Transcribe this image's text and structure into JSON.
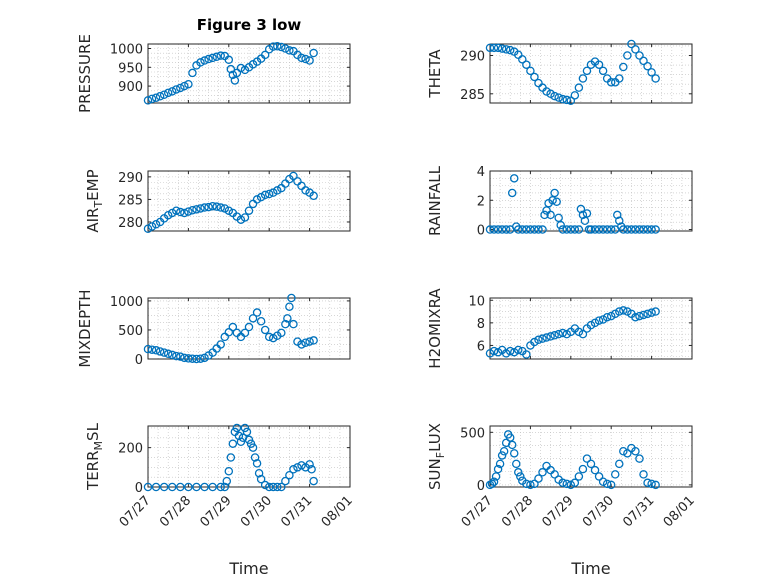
{
  "figure_title": "Figure 3 low",
  "colors": {
    "marker": "#0072BD",
    "axis": "#262626",
    "grid": "#bfbfbf"
  },
  "x_axis": {
    "label": "Time",
    "domain": [
      "07/27",
      "08/01"
    ],
    "ticks": [
      "07/27",
      "07/28",
      "07/29",
      "07/30",
      "07/31",
      "08/01"
    ]
  },
  "chart_data": [
    {
      "type": "scatter",
      "id": "pressure",
      "title": "Figure 3 low",
      "ylabel": "PRESSURE",
      "ylabel_sub": "",
      "ylabel_tail": "",
      "ylim": [
        855,
        1012
      ],
      "yticks": [
        900,
        950,
        1000
      ],
      "xlabel": "",
      "x": [
        0.0,
        0.1,
        0.2,
        0.3,
        0.4,
        0.5,
        0.6,
        0.7,
        0.8,
        0.9,
        1.0,
        1.1,
        1.2,
        1.3,
        1.4,
        1.5,
        1.6,
        1.7,
        1.8,
        1.9,
        2.0,
        2.05,
        2.1,
        2.15,
        2.2,
        2.3,
        2.4,
        2.5,
        2.6,
        2.7,
        2.8,
        2.9,
        3.0,
        3.1,
        3.2,
        3.3,
        3.4,
        3.5,
        3.6,
        3.7,
        3.8,
        3.9,
        4.0,
        4.1
      ],
      "y": [
        862,
        866,
        869,
        873,
        877,
        882,
        886,
        891,
        895,
        900,
        905,
        935,
        955,
        963,
        968,
        972,
        975,
        978,
        981,
        980,
        970,
        945,
        930,
        915,
        935,
        948,
        943,
        950,
        958,
        965,
        973,
        983,
        998,
        1005,
        1006,
        1004,
        1000,
        995,
        993,
        983,
        975,
        972,
        968,
        988
      ]
    },
    {
      "type": "scatter",
      "id": "theta",
      "ylabel": "THETA",
      "ylabel_sub": "",
      "ylabel_tail": "",
      "ylim": [
        283.8,
        291.5
      ],
      "yticks": [
        285,
        290
      ],
      "xlabel": "",
      "x": [
        0.0,
        0.1,
        0.2,
        0.3,
        0.4,
        0.5,
        0.6,
        0.7,
        0.8,
        0.9,
        1.0,
        1.1,
        1.2,
        1.3,
        1.4,
        1.5,
        1.6,
        1.7,
        1.8,
        1.9,
        2.0,
        2.1,
        2.2,
        2.3,
        2.4,
        2.5,
        2.6,
        2.7,
        2.8,
        2.9,
        3.0,
        3.1,
        3.2,
        3.3,
        3.4,
        3.5,
        3.6,
        3.7,
        3.8,
        3.9,
        4.0,
        4.1
      ],
      "y": [
        291,
        291,
        291,
        290.9,
        290.8,
        290.7,
        290.5,
        290.1,
        289.5,
        288.8,
        288,
        287.2,
        286.4,
        285.8,
        285.3,
        285,
        284.7,
        284.5,
        284.3,
        284.2,
        284.1,
        284.8,
        285.8,
        287,
        288,
        288.8,
        289.2,
        288.8,
        288,
        287,
        286.5,
        286.5,
        287,
        288.5,
        290,
        291.5,
        290.8,
        290,
        289.3,
        288.6,
        287.8,
        287
      ]
    },
    {
      "type": "scatter",
      "id": "air_temp",
      "ylabel": "AIR",
      "ylabel_sub": "T",
      "ylabel_tail": "EMP",
      "ylim": [
        278,
        291.3
      ],
      "yticks": [
        280,
        285,
        290
      ],
      "xlabel": "",
      "x": [
        0.0,
        0.1,
        0.2,
        0.3,
        0.4,
        0.5,
        0.6,
        0.7,
        0.8,
        0.9,
        1.0,
        1.1,
        1.2,
        1.3,
        1.4,
        1.5,
        1.6,
        1.7,
        1.8,
        1.9,
        2.0,
        2.1,
        2.2,
        2.3,
        2.4,
        2.5,
        2.6,
        2.7,
        2.8,
        2.9,
        3.0,
        3.1,
        3.2,
        3.3,
        3.4,
        3.5,
        3.6,
        3.7,
        3.8,
        3.9,
        4.0,
        4.1
      ],
      "y": [
        278.5,
        279,
        279.5,
        280,
        280.8,
        281.5,
        282,
        282.5,
        282.2,
        282,
        282.3,
        282.6,
        282.8,
        283,
        283.2,
        283.3,
        283.5,
        283.4,
        283.2,
        283,
        282.5,
        282,
        281.2,
        280.5,
        281,
        282.5,
        284,
        285,
        285.5,
        286,
        286.2,
        286.5,
        287,
        287.5,
        288.5,
        289.5,
        290.2,
        289,
        288,
        287,
        286.5,
        285.8
      ]
    },
    {
      "type": "scatter",
      "id": "rainfall",
      "ylabel": "RAINFALL",
      "ylabel_sub": "",
      "ylabel_tail": "",
      "ylim": [
        -0.1,
        4.0
      ],
      "yticks": [
        0,
        2,
        4
      ],
      "xlabel": "",
      "x": [
        0.0,
        0.1,
        0.2,
        0.3,
        0.4,
        0.5,
        0.55,
        0.6,
        0.65,
        0.7,
        0.8,
        0.9,
        1.0,
        1.1,
        1.2,
        1.3,
        1.35,
        1.4,
        1.45,
        1.5,
        1.55,
        1.6,
        1.65,
        1.7,
        1.75,
        1.8,
        1.9,
        2.0,
        2.1,
        2.2,
        2.25,
        2.3,
        2.35,
        2.4,
        2.45,
        2.5,
        2.6,
        2.7,
        2.8,
        2.9,
        3.0,
        3.1,
        3.15,
        3.2,
        3.25,
        3.3,
        3.4,
        3.5,
        3.6,
        3.7,
        3.8,
        3.9,
        4.0,
        4.1
      ],
      "y": [
        0,
        0,
        0,
        0,
        0,
        0,
        2.5,
        3.5,
        0.2,
        0,
        0,
        0,
        0,
        0,
        0,
        0,
        1.0,
        1.3,
        1.8,
        1.0,
        2.0,
        2.5,
        1.9,
        0.8,
        0.3,
        0,
        0,
        0,
        0,
        0,
        1.4,
        1.0,
        0.6,
        1.1,
        0,
        0,
        0,
        0,
        0,
        0,
        0,
        0,
        1.0,
        0.6,
        0.2,
        0,
        0,
        0,
        0,
        0,
        0,
        0,
        0,
        0
      ]
    },
    {
      "type": "scatter",
      "id": "mixdepth",
      "ylabel": "MIXDEPTH",
      "ylabel_sub": "",
      "ylabel_tail": "",
      "ylim": [
        0,
        1050
      ],
      "yticks": [
        0,
        500,
        1000
      ],
      "xlabel": "",
      "x": [
        0.0,
        0.1,
        0.2,
        0.3,
        0.4,
        0.5,
        0.6,
        0.7,
        0.8,
        0.9,
        1.0,
        1.1,
        1.2,
        1.3,
        1.4,
        1.5,
        1.6,
        1.7,
        1.8,
        1.9,
        2.0,
        2.1,
        2.2,
        2.3,
        2.4,
        2.5,
        2.6,
        2.7,
        2.8,
        2.9,
        3.0,
        3.1,
        3.2,
        3.3,
        3.4,
        3.45,
        3.5,
        3.55,
        3.6,
        3.7,
        3.8,
        3.9,
        4.0,
        4.1
      ],
      "y": [
        170,
        160,
        150,
        130,
        110,
        90,
        70,
        50,
        40,
        20,
        10,
        5,
        0,
        5,
        20,
        60,
        110,
        180,
        250,
        380,
        460,
        550,
        450,
        380,
        450,
        550,
        700,
        800,
        650,
        500,
        380,
        360,
        400,
        450,
        600,
        700,
        900,
        1050,
        600,
        300,
        250,
        280,
        300,
        320
      ]
    },
    {
      "type": "scatter",
      "id": "h2omixra",
      "ylabel": "H2OMIXRA",
      "ylabel_sub": "",
      "ylabel_tail": "",
      "ylim": [
        4.8,
        10.2
      ],
      "yticks": [
        6,
        8,
        10
      ],
      "xlabel": "",
      "x": [
        0.0,
        0.1,
        0.2,
        0.3,
        0.4,
        0.5,
        0.6,
        0.7,
        0.8,
        0.9,
        1.0,
        1.1,
        1.2,
        1.3,
        1.4,
        1.5,
        1.6,
        1.7,
        1.8,
        1.9,
        2.0,
        2.1,
        2.2,
        2.3,
        2.4,
        2.5,
        2.6,
        2.7,
        2.8,
        2.9,
        3.0,
        3.1,
        3.2,
        3.3,
        3.4,
        3.5,
        3.6,
        3.7,
        3.8,
        3.9,
        4.0,
        4.1
      ],
      "y": [
        5.3,
        5.5,
        5.4,
        5.6,
        5.3,
        5.5,
        5.4,
        5.6,
        5.5,
        5.2,
        6.0,
        6.3,
        6.5,
        6.6,
        6.7,
        6.8,
        6.9,
        7.0,
        7.1,
        7.0,
        7.2,
        7.5,
        7.2,
        7.0,
        7.5,
        7.8,
        8.0,
        8.2,
        8.3,
        8.5,
        8.6,
        8.8,
        9.0,
        9.1,
        9.0,
        8.8,
        8.5,
        8.6,
        8.7,
        8.8,
        8.9,
        9.0
      ]
    },
    {
      "type": "scatter",
      "id": "terr_msl",
      "ylabel": "TERR",
      "ylabel_sub": "M",
      "ylabel_tail": "SL",
      "ylim": [
        0,
        310
      ],
      "yticks": [
        0,
        200
      ],
      "xlabel": "Time",
      "x": [
        0.0,
        0.2,
        0.4,
        0.6,
        0.8,
        1.0,
        1.2,
        1.4,
        1.6,
        1.8,
        1.9,
        1.95,
        2.0,
        2.05,
        2.1,
        2.15,
        2.2,
        2.25,
        2.3,
        2.35,
        2.4,
        2.45,
        2.5,
        2.55,
        2.6,
        2.65,
        2.7,
        2.75,
        2.8,
        2.9,
        3.0,
        3.1,
        3.2,
        3.3,
        3.4,
        3.5,
        3.6,
        3.7,
        3.8,
        3.9,
        4.0,
        4.05,
        4.1
      ],
      "y": [
        0,
        0,
        0,
        0,
        0,
        0,
        0,
        0,
        0,
        0,
        0,
        30,
        80,
        150,
        220,
        280,
        300,
        260,
        230,
        250,
        300,
        280,
        240,
        220,
        200,
        150,
        120,
        70,
        40,
        10,
        0,
        0,
        0,
        0,
        30,
        60,
        90,
        100,
        110,
        100,
        115,
        90,
        30
      ]
    },
    {
      "type": "scatter",
      "id": "sun_flux",
      "ylabel": "SUN",
      "ylabel_sub": "F",
      "ylabel_tail": "LUX",
      "ylim": [
        -20,
        560
      ],
      "yticks": [
        0,
        500
      ],
      "xlabel": "Time",
      "x": [
        0.0,
        0.05,
        0.1,
        0.15,
        0.2,
        0.25,
        0.3,
        0.35,
        0.4,
        0.45,
        0.5,
        0.55,
        0.6,
        0.65,
        0.7,
        0.75,
        0.8,
        0.9,
        1.0,
        1.1,
        1.2,
        1.3,
        1.4,
        1.5,
        1.6,
        1.7,
        1.8,
        1.9,
        2.0,
        2.1,
        2.2,
        2.3,
        2.4,
        2.5,
        2.6,
        2.7,
        2.8,
        2.9,
        3.0,
        3.1,
        3.2,
        3.3,
        3.4,
        3.5,
        3.6,
        3.7,
        3.8,
        3.9,
        4.0,
        4.1
      ],
      "y": [
        0,
        10,
        30,
        80,
        150,
        200,
        280,
        320,
        400,
        480,
        450,
        380,
        300,
        200,
        120,
        80,
        40,
        10,
        0,
        10,
        60,
        120,
        180,
        140,
        100,
        50,
        20,
        10,
        0,
        20,
        80,
        150,
        250,
        200,
        140,
        80,
        30,
        10,
        0,
        100,
        200,
        320,
        300,
        350,
        320,
        250,
        100,
        20,
        10,
        0
      ]
    }
  ]
}
